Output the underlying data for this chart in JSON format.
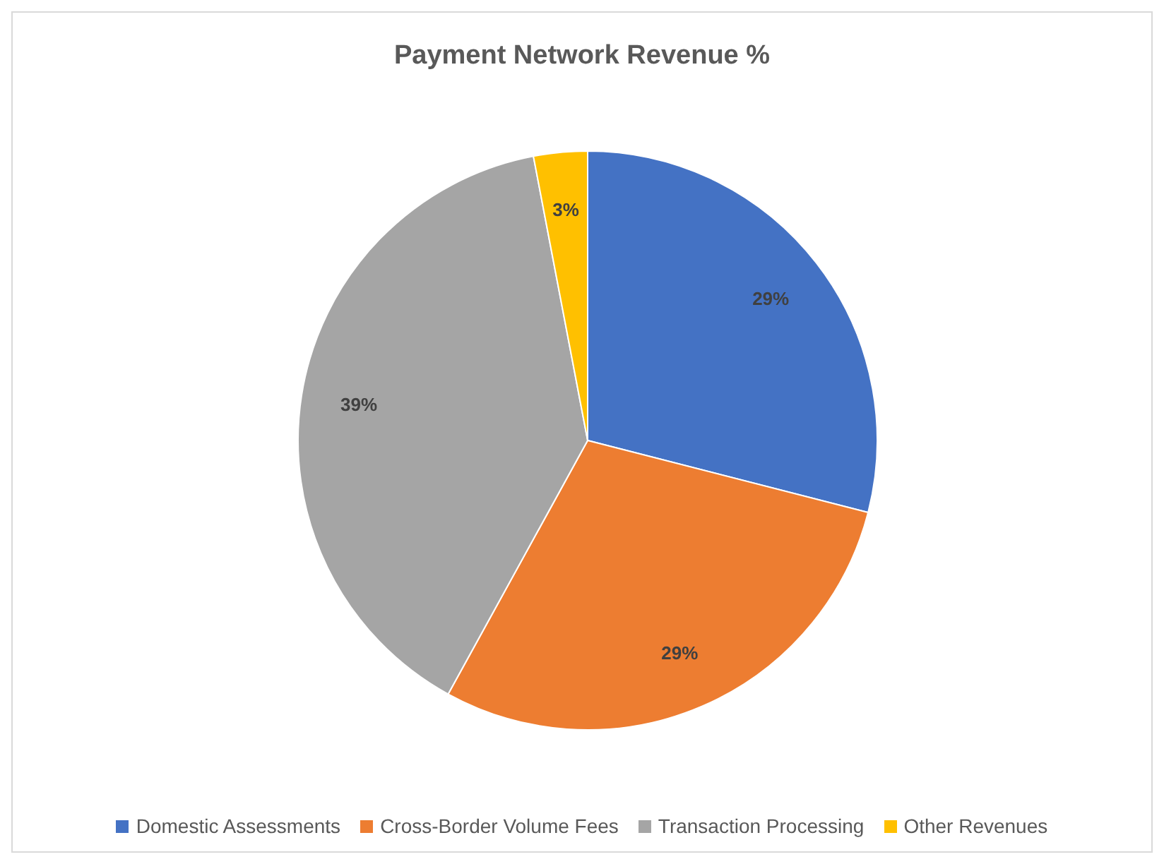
{
  "chart_data": {
    "type": "pie",
    "title": "Payment Network Revenue %",
    "categories": [
      "Domestic Assessments",
      "Cross-Border Volume Fees",
      "Transaction Processing",
      "Other Revenues"
    ],
    "values": [
      29,
      29,
      39,
      3
    ],
    "colors": [
      "#4472c4",
      "#ed7d31",
      "#a5a5a5",
      "#ffc000"
    ],
    "value_labels": [
      "29%",
      "29%",
      "39%",
      "3%"
    ],
    "legend": "bottom"
  }
}
